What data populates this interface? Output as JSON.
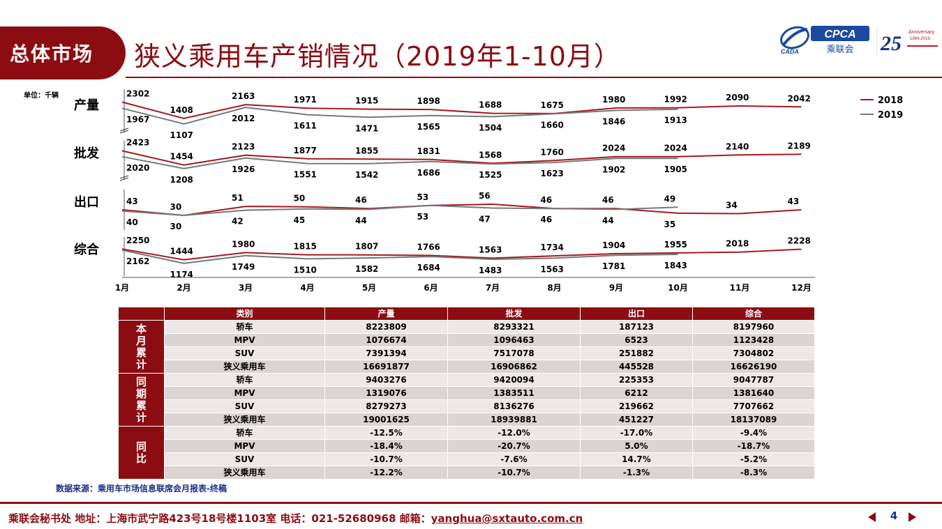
{
  "header": {
    "section": "总体市场",
    "title": "狭义乘用车产销情况（2019年1-10月）",
    "logos": {
      "cada": "CADA",
      "cpca": "CPCA",
      "cpca_cn": "乘联会",
      "anniversary_num": "25",
      "anniversary_text": "Anniversary",
      "anniversary_years": "1994-2019"
    }
  },
  "chart_data": {
    "type": "line",
    "unit": "单位：千辆",
    "categories": [
      "1月",
      "2月",
      "3月",
      "4月",
      "5月",
      "6月",
      "7月",
      "8月",
      "9月",
      "10月",
      "11月",
      "12月"
    ],
    "legend": [
      "2018",
      "2019"
    ],
    "legend_position": "top-right",
    "colors": {
      "2018": "#a31a1f",
      "2019": "#76787e"
    },
    "panels": [
      {
        "name": "产量",
        "series": [
          {
            "name": "2018",
            "values": [
              2302,
              1408,
              2163,
              1971,
              1915,
              1898,
              1688,
              1675,
              1980,
              1992,
              2090,
              2042
            ]
          },
          {
            "name": "2019",
            "values": [
              1967,
              1107,
              2012,
              1611,
              1471,
              1565,
              1504,
              1660,
              1846,
              1913
            ]
          }
        ]
      },
      {
        "name": "批发",
        "series": [
          {
            "name": "2018",
            "values": [
              2423,
              1454,
              2123,
              1877,
              1855,
              1831,
              1568,
              1760,
              2024,
              2024,
              2140,
              2189
            ]
          },
          {
            "name": "2019",
            "values": [
              2020,
              1208,
              1926,
              1551,
              1542,
              1686,
              1525,
              1623,
              1902,
              1905
            ]
          }
        ]
      },
      {
        "name": "出口",
        "series": [
          {
            "name": "2018",
            "values": [
              43,
              30,
              51,
              50,
              46,
              53,
              56,
              46,
              46,
              35,
              34,
              43
            ]
          },
          {
            "name": "2019",
            "values": [
              40,
              30,
              42,
              45,
              44,
              53,
              47,
              46,
              44,
              49
            ]
          }
        ]
      },
      {
        "name": "综合",
        "series": [
          {
            "name": "2018",
            "values": [
              2250,
              1444,
              1980,
              1815,
              1807,
              1766,
              1563,
              1734,
              1904,
              1955,
              2018,
              2228
            ]
          },
          {
            "name": "2019",
            "values": [
              2162,
              1174,
              1749,
              1510,
              1582,
              1684,
              1483,
              1563,
              1781,
              1843
            ]
          }
        ]
      }
    ]
  },
  "table": {
    "headers": [
      "类别",
      "产量",
      "批发",
      "出口",
      "综合"
    ],
    "groups": [
      {
        "label": "本月累计",
        "rows": [
          [
            "轿车",
            "8223809",
            "8293321",
            "187123",
            "8197960"
          ],
          [
            "MPV",
            "1076674",
            "1096463",
            "6523",
            "1123428"
          ],
          [
            "SUV",
            "7391394",
            "7517078",
            "251882",
            "7304802"
          ],
          [
            "狭义乘用车",
            "16691877",
            "16906862",
            "445528",
            "16626190"
          ]
        ]
      },
      {
        "label": "同期累计",
        "rows": [
          [
            "轿车",
            "9403276",
            "9420094",
            "225353",
            "9047787"
          ],
          [
            "MPV",
            "1319076",
            "1383511",
            "6212",
            "1381640"
          ],
          [
            "SUV",
            "8279273",
            "8136276",
            "219662",
            "7707662"
          ],
          [
            "狭义乘用车",
            "19001625",
            "18939881",
            "451227",
            "18137089"
          ]
        ]
      },
      {
        "label": "同比",
        "rows": [
          [
            "轿车",
            "-12.5%",
            "-12.0%",
            "-17.0%",
            "-9.4%"
          ],
          [
            "MPV",
            "-18.4%",
            "-20.7%",
            "5.0%",
            "-18.7%"
          ],
          [
            "SUV",
            "-10.7%",
            "-7.6%",
            "14.7%",
            "-5.2%"
          ],
          [
            "狭义乘用车",
            "-12.2%",
            "-10.7%",
            "-1.3%",
            "-8.3%"
          ]
        ]
      }
    ]
  },
  "source": "数据来源：乘用车市场信息联席会月报表-终稿",
  "footer": {
    "text": "乘联会秘书处   地址：上海市武宁路423号18号楼1103室  电话：021-52680968   邮箱：",
    "email": "yanghua@sxtauto.com.cn",
    "page": "4"
  }
}
